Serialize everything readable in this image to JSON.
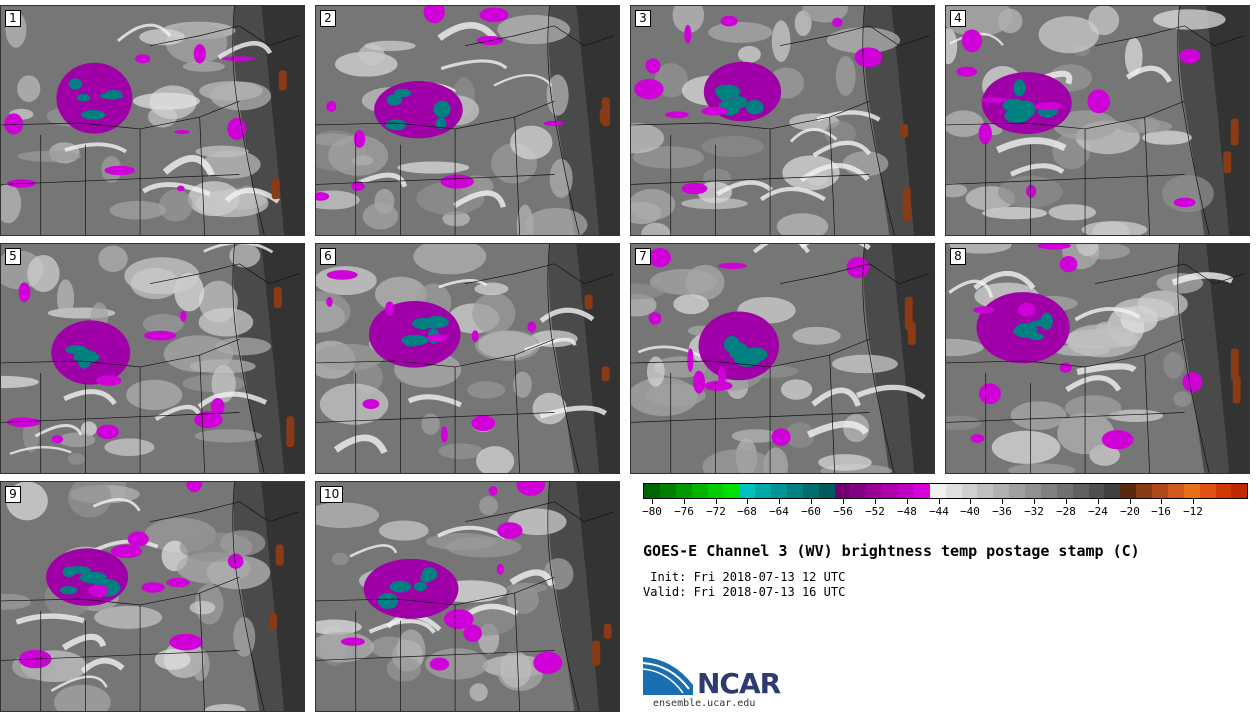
{
  "panels": [
    {
      "label": "1"
    },
    {
      "label": "2"
    },
    {
      "label": "3"
    },
    {
      "label": "4"
    },
    {
      "label": "5"
    },
    {
      "label": "6"
    },
    {
      "label": "7"
    },
    {
      "label": "8"
    },
    {
      "label": "9"
    },
    {
      "label": "10"
    }
  ],
  "colorbar": {
    "colors": [
      "#006400",
      "#008000",
      "#009a00",
      "#00b400",
      "#00cc00",
      "#00e000",
      "#00c0c0",
      "#00a8a8",
      "#009494",
      "#008080",
      "#006e6e",
      "#005c5c",
      "#700070",
      "#840084",
      "#980098",
      "#ac00ac",
      "#c000c0",
      "#d800d8",
      "#f0f0f0",
      "#e0e0e0",
      "#d0d0d0",
      "#c0c0c0",
      "#b0b0b0",
      "#a0a0a0",
      "#909090",
      "#808080",
      "#707070",
      "#606060",
      "#505050",
      "#404040",
      "#5a2810",
      "#8a3a14",
      "#b04818",
      "#d05a1c",
      "#e87018",
      "#e05010",
      "#d03808",
      "#c02800"
    ],
    "tick_labels": [
      "−80",
      "−76",
      "−72",
      "−68",
      "−64",
      "−60",
      "−56",
      "−52",
      "−48",
      "−44",
      "−40",
      "−36",
      "−32",
      "−28",
      "−24",
      "−20",
      "−16",
      "−12"
    ]
  },
  "title": "GOES-E Channel 3 (WV) brightness temp postage stamp (C)",
  "init": " Init: Fri 2018-07-13 12 UTC",
  "valid": "Valid: Fri 2018-07-13 16 UTC",
  "logo": {
    "text": "NCAR",
    "url": "ensemble.ucar.edu"
  }
}
